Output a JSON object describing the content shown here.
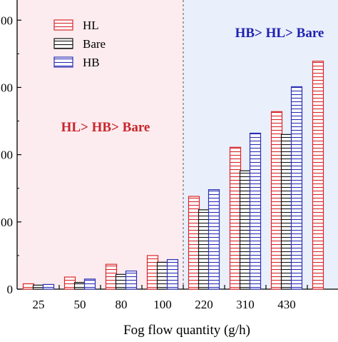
{
  "chart_data": {
    "type": "bar",
    "xlabel": "Fog flow quantity (g/h)",
    "ylabel": "",
    "categories": [
      "25",
      "50",
      "80",
      "100",
      "220",
      "310",
      "430",
      ""
    ],
    "ylim": [
      0,
      2150
    ],
    "yticks": [
      {
        "value": 0,
        "label": "0"
      },
      {
        "value": 500,
        "label": "00"
      },
      {
        "value": 1000,
        "label": "00"
      },
      {
        "value": 1500,
        "label": "00"
      },
      {
        "value": 2000,
        "label": "00"
      }
    ],
    "series": [
      {
        "name": "HL",
        "color": "#d9262b",
        "values": [
          40,
          90,
          185,
          250,
          690,
          1055,
          1320,
          1695
        ]
      },
      {
        "name": "Bare",
        "color": "#111111",
        "values": [
          30,
          50,
          110,
          200,
          590,
          880,
          1150,
          null
        ]
      },
      {
        "name": "HB",
        "color": "#2b2fb5",
        "values": [
          35,
          75,
          135,
          220,
          740,
          1160,
          1505,
          null
        ]
      }
    ],
    "regions": [
      {
        "label": "HL> HB> Bare",
        "color": "#c8262b",
        "background": "#fdecef"
      },
      {
        "label": "HB> HL> Bare",
        "color": "#1f22b0",
        "background": "#e9f0fb"
      }
    ],
    "legend": "top-left"
  }
}
